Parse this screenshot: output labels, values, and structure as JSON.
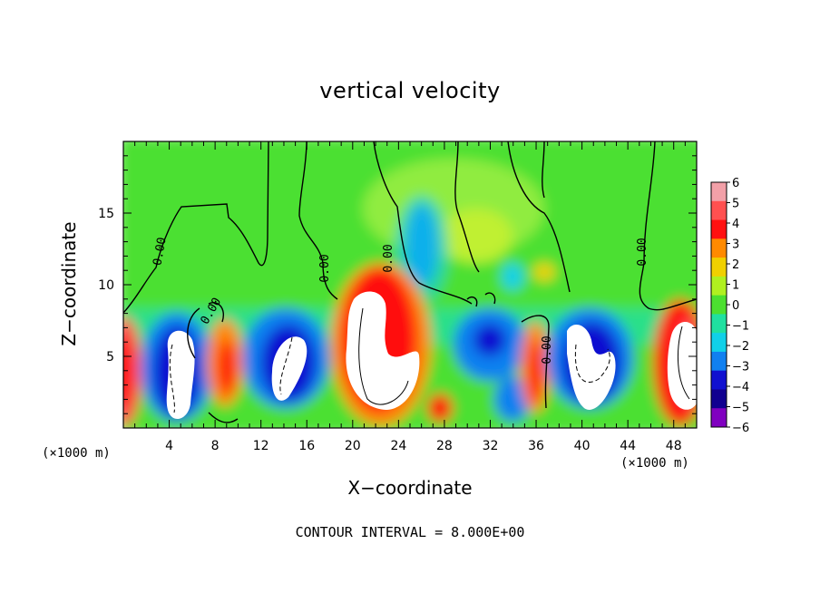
{
  "chart_data": {
    "type": "heatmap",
    "title": "vertical velocity",
    "xlabel": "X−coordinate",
    "ylabel": "Z−coordinate",
    "x_unit": "(×1000 m)",
    "z_unit": "(×1000 m)",
    "xlim": [
      0,
      50
    ],
    "ylim": [
      0,
      20
    ],
    "x_ticks": [
      "4",
      "8",
      "12",
      "16",
      "20",
      "24",
      "28",
      "32",
      "36",
      "40",
      "44",
      "48"
    ],
    "y_ticks": [
      "5",
      "10",
      "15"
    ],
    "colorbar": {
      "min": -6,
      "max": 6,
      "labels": [
        "6",
        "5",
        "4",
        "3",
        "2",
        "1",
        "0",
        "−1",
        "−2",
        "−3",
        "−4",
        "−5",
        "−6"
      ],
      "colors": [
        "#f2a0a8",
        "#ff5050",
        "#ff1010",
        "#ff8a00",
        "#f0d000",
        "#b0f020",
        "#4ce030",
        "#20e0a0",
        "#10d0e8",
        "#1080f0",
        "#1010d0",
        "#100090",
        "#8000c0"
      ]
    },
    "contour_labels": [
      "0.00",
      "0.00",
      "0.00",
      "0.00",
      "0.00",
      "0.00"
    ],
    "contour_interval": "CONTOUR INTERVAL = 8.000E+00",
    "updrafts": [
      {
        "x": 4.5,
        "z": 3.8,
        "w": -5
      },
      {
        "x": 8.5,
        "z": 3.8,
        "w": 3
      },
      {
        "x": 14.5,
        "z": 4.5,
        "w": -5
      },
      {
        "x": 21.5,
        "z": 6.5,
        "w": 12
      },
      {
        "x": 25.5,
        "z": 13.5,
        "w": -3
      },
      {
        "x": 30.5,
        "z": 5.5,
        "w": -4
      },
      {
        "x": 35.5,
        "z": 3.8,
        "w": 4
      },
      {
        "x": 41.5,
        "z": 4.5,
        "w": -5
      },
      {
        "x": 48.5,
        "z": 4.5,
        "w": 10
      }
    ]
  }
}
